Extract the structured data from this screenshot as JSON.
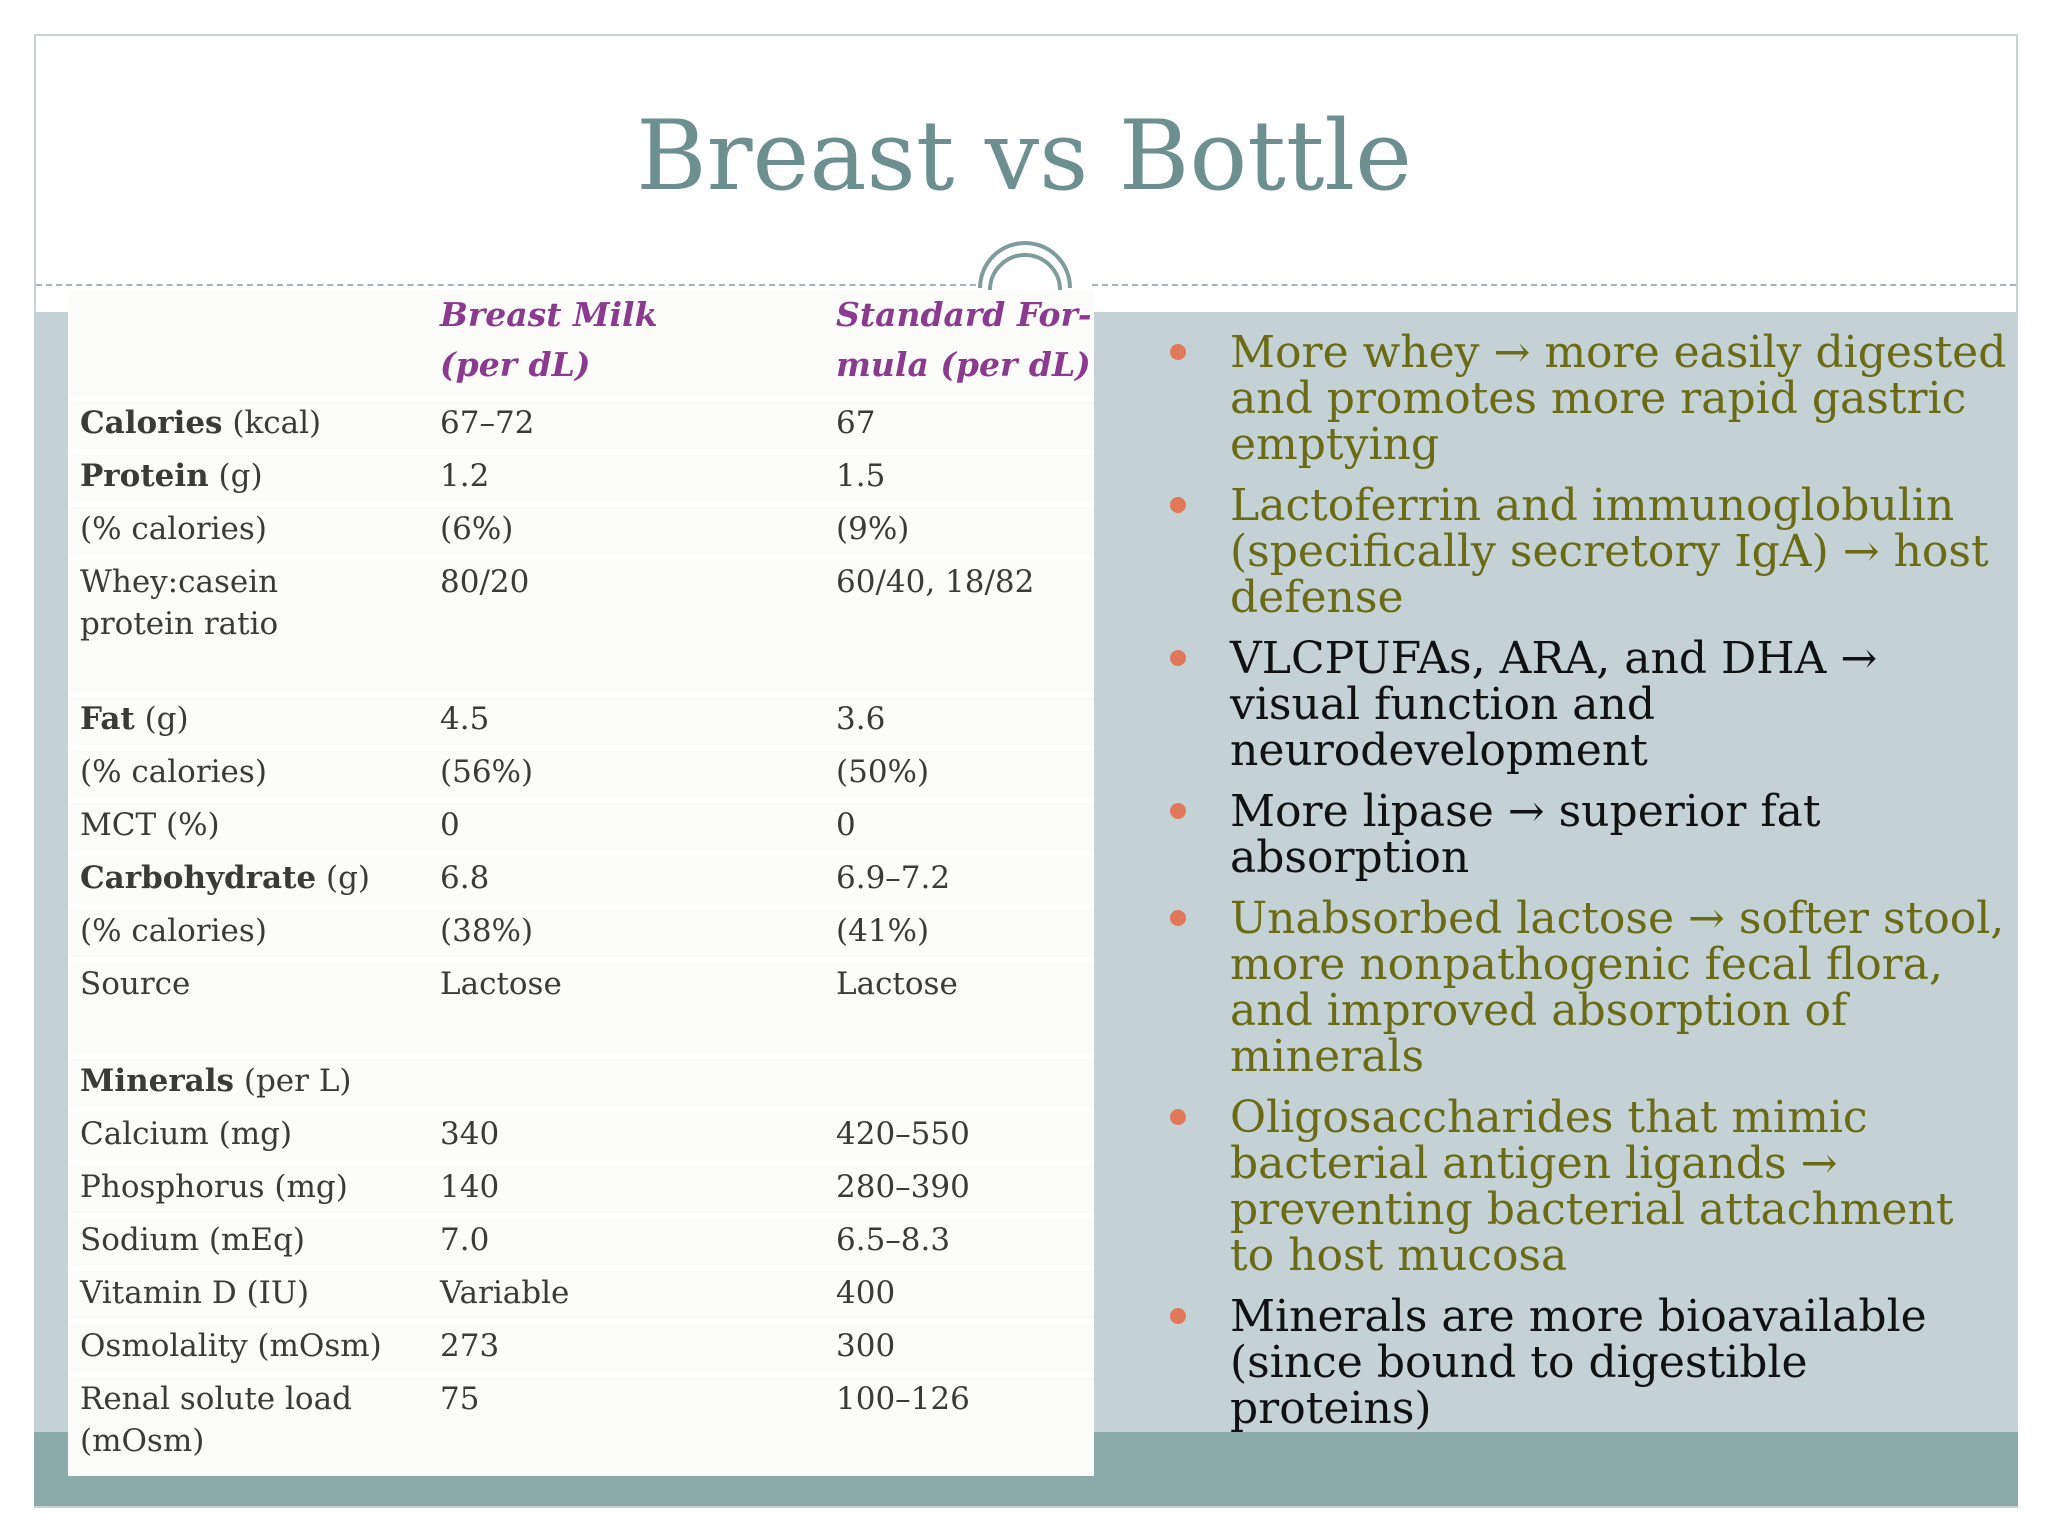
{
  "slide": {
    "title": "Breast vs Bottle"
  },
  "table": {
    "headers": {
      "breast_line1": "Breast Milk",
      "breast_line2": "(per dL)",
      "formula_line1": "Standard For-",
      "formula_line2": "mula (per dL)"
    },
    "rows": [
      {
        "label_bold": "Calories",
        "label_rest": " (kcal)",
        "breast": "67–72",
        "formula": "67"
      },
      {
        "label_bold": "Protein",
        "label_rest": " (g)",
        "breast": "1.2",
        "formula": "1.5"
      },
      {
        "label_bold": "",
        "label_rest": "(% calories)",
        "breast": "(6%)",
        "formula": "(9%)"
      },
      {
        "label_bold": "",
        "label_rest": "Whey:casein",
        "label_line2": "protein ratio",
        "breast": "80/20",
        "formula": "60/40, 18/82"
      },
      {
        "label_bold": "Fat",
        "label_rest": " (g)",
        "breast": "4.5",
        "formula": "3.6"
      },
      {
        "label_bold": "",
        "label_rest": "(% calories)",
        "breast": "(56%)",
        "formula": "(50%)"
      },
      {
        "label_bold": "",
        "label_rest": "MCT (%)",
        "breast": "0",
        "formula": "0"
      },
      {
        "label_bold": "Carbohydrate",
        "label_rest": " (g)",
        "breast": "6.8",
        "formula": "6.9–7.2"
      },
      {
        "label_bold": "",
        "label_rest": "(% calories)",
        "breast": "(38%)",
        "formula": "(41%)"
      },
      {
        "label_bold": "",
        "label_rest": "Source",
        "breast": "Lactose",
        "formula": "Lactose"
      },
      {
        "label_bold": "Minerals",
        "label_rest": " (per L)",
        "breast": "",
        "formula": ""
      },
      {
        "label_bold": "",
        "label_rest": "Calcium (mg)",
        "breast": "340",
        "formula": "420–550"
      },
      {
        "label_bold": "",
        "label_rest": "Phosphorus (mg)",
        "breast": "140",
        "formula": "280–390"
      },
      {
        "label_bold": "",
        "label_rest": "Sodium (mEq)",
        "breast": "7.0",
        "formula": "6.5–8.3"
      },
      {
        "label_bold": "",
        "label_rest": "Vitamin D (IU)",
        "breast": "Variable",
        "formula": "400"
      },
      {
        "label_bold": "",
        "label_rest": "Osmolality (mOsm)",
        "breast": "273",
        "formula": "300"
      },
      {
        "label_bold": "",
        "label_rest": "Renal solute load",
        "label_line2": "(mOsm)",
        "breast": "75",
        "formula": "100–126"
      }
    ]
  },
  "bullets": [
    {
      "text": "More whey → more easily digested and promotes more rapid gastric emptying",
      "color": "#6b6a15"
    },
    {
      "text": "Lactoferrin and immunoglobulin (specifically secretory IgA) → host defense",
      "color": "#6b6a15"
    },
    {
      "text": "VLCPUFAs, ARA, and DHA → visual function and neurodevelopment",
      "color": "#111111"
    },
    {
      "text": "More lipase → superior fat absorption",
      "color": "#111111"
    },
    {
      "text": "Unabsorbed lactose → softer stool, more nonpathogenic fecal flora, and improved absorption of minerals",
      "color": "#6b6a15"
    },
    {
      "text": "Oligosaccharides that mimic bacterial antigen ligands → preventing bacterial attachment to host mucosa",
      "color": "#6b6a15"
    },
    {
      "text": "Minerals are more bioavailable (since bound to digestible proteins)",
      "color": "#111111"
    }
  ],
  "colors": {
    "title": "#6d8f8f",
    "band": "#c4d2d6",
    "bottom_band": "#8daaab",
    "bullet_dot": "#e0795a",
    "header_purple": "#8a3b8f"
  }
}
